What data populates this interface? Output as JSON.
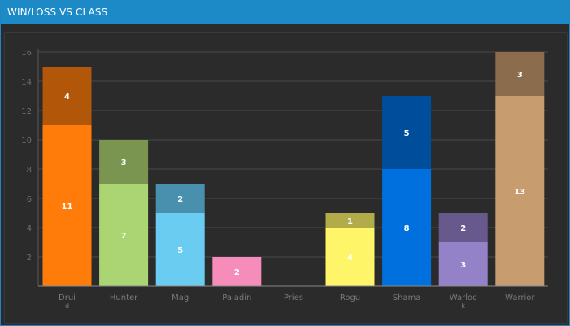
{
  "title": "WIN/LOSS VS CLASS",
  "chart_data": {
    "type": "bar",
    "stacked": true,
    "categories": [
      "Druid",
      "Hunter",
      "Mage",
      "Paladin",
      "Priest",
      "Rogue",
      "Shaman",
      "Warlock",
      "Warrior"
    ],
    "tick_labels": [
      "Drui",
      "Hunter",
      "Mag",
      "Paladin",
      "Pries",
      "Rogu",
      "Shama",
      "Warloc",
      "Warrior"
    ],
    "tick_sublabels": [
      "d",
      "",
      "-",
      "",
      "-",
      "-",
      "-",
      "k",
      ""
    ],
    "series": [
      {
        "values": [
          11,
          7,
          5,
          2,
          0,
          4,
          8,
          3,
          13
        ]
      },
      {
        "values": [
          4,
          3,
          2,
          0,
          0,
          1,
          5,
          2,
          3
        ]
      }
    ],
    "colors": {
      "bottom": [
        "#ff7c0a",
        "#abd473",
        "#69ccf0",
        "#f58cba",
        "#ffffff",
        "#fff569",
        "#0070de",
        "#9482c9",
        "#c79c6e"
      ],
      "top": [
        "#b2560a",
        "#7a9550",
        "#4890ae",
        "#ab6282",
        "#b2b2b2",
        "#b2ab49",
        "#004e9b",
        "#68598d",
        "#8b6d4d"
      ]
    },
    "yticks": [
      2,
      4,
      6,
      8,
      10,
      12,
      14,
      16
    ],
    "ylim": [
      0,
      16
    ],
    "grid": true,
    "legend": "none"
  }
}
